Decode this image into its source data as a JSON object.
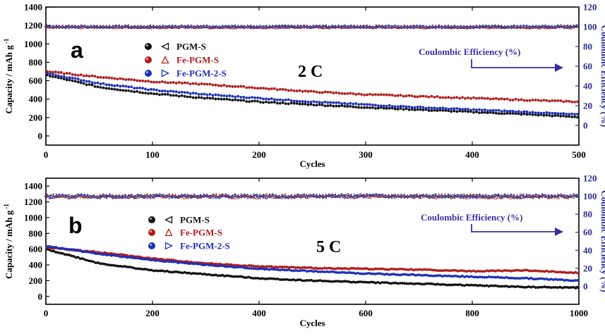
{
  "chart_data": [
    {
      "type": "scatter",
      "panel_label": "a",
      "rate_label": "2 C",
      "xlabel": "Cycles",
      "ylabel": "Capacity / mAh g",
      "ylabel_sup": "-1",
      "y2label": "Coulombic Efficiency (%)",
      "ce_annotation": "Coulombic Efficiency (%)",
      "xlim": [
        0,
        500
      ],
      "ylim": [
        -100,
        1400
      ],
      "y2lim": [
        -20,
        120
      ],
      "xticks": [
        "0",
        "100",
        "200",
        "300",
        "400",
        "500"
      ],
      "yticks": [
        "0",
        "200",
        "400",
        "600",
        "800",
        "1000",
        "1200",
        "1400"
      ],
      "y2ticks": [
        "0",
        "20",
        "40",
        "60",
        "80",
        "100",
        "120"
      ],
      "legend": [
        {
          "name": "PGM-S",
          "color": "#111111",
          "ce_marker": "left-triangle"
        },
        {
          "name": "Fe-PGM-S",
          "color": "#b01c1c",
          "ce_marker": "up-triangle"
        },
        {
          "name": "Fe-PGM-2-S",
          "color": "#1f2fb8",
          "ce_marker": "right-triangle"
        }
      ],
      "series": [
        {
          "name": "PGM-S",
          "color": "#111111",
          "x": [
            1,
            50,
            100,
            150,
            200,
            250,
            300,
            350,
            400,
            450,
            500
          ],
          "values": [
            660,
            530,
            460,
            410,
            370,
            340,
            310,
            285,
            260,
            235,
            205
          ]
        },
        {
          "name": "Fe-PGM-S",
          "color": "#b01c1c",
          "x": [
            1,
            50,
            100,
            150,
            200,
            250,
            300,
            350,
            400,
            450,
            500
          ],
          "values": [
            700,
            640,
            590,
            560,
            520,
            480,
            450,
            430,
            410,
            390,
            370
          ]
        },
        {
          "name": "Fe-PGM-2-S",
          "color": "#1f2fb8",
          "x": [
            1,
            50,
            100,
            150,
            200,
            250,
            300,
            350,
            400,
            450,
            500
          ],
          "values": [
            680,
            570,
            500,
            450,
            410,
            370,
            340,
            310,
            285,
            260,
            230
          ]
        }
      ],
      "coulombic_efficiency": {
        "x": [
          1,
          500
        ],
        "values": [
          100,
          100
        ]
      }
    },
    {
      "type": "scatter",
      "panel_label": "b",
      "rate_label": "5 C",
      "xlabel": "Cycles",
      "ylabel": "Capacity / mAh g",
      "ylabel_sup": "-1",
      "y2label": "Coulombic Efficiency (%)",
      "ce_annotation": "Coulombic Efficiency (%)",
      "xlim": [
        0,
        1000
      ],
      "ylim": [
        -100,
        1500
      ],
      "y2lim": [
        -20,
        120
      ],
      "xticks": [
        "0",
        "200",
        "400",
        "600",
        "800",
        "1000"
      ],
      "yticks": [
        "0",
        "200",
        "400",
        "600",
        "800",
        "1000",
        "1200",
        "1400"
      ],
      "y2ticks": [
        "0",
        "20",
        "40",
        "60",
        "80",
        "100",
        "120"
      ],
      "legend": [
        {
          "name": "PGM-S",
          "color": "#111111",
          "ce_marker": "left-triangle"
        },
        {
          "name": "Fe-PGM-S",
          "color": "#b01c1c",
          "ce_marker": "up-triangle"
        },
        {
          "name": "Fe-PGM-2-S",
          "color": "#1f2fb8",
          "ce_marker": "right-triangle"
        }
      ],
      "series": [
        {
          "name": "PGM-S",
          "color": "#111111",
          "x": [
            1,
            100,
            200,
            300,
            400,
            500,
            600,
            700,
            800,
            900,
            1000
          ],
          "values": [
            600,
            420,
            330,
            280,
            230,
            200,
            180,
            160,
            140,
            120,
            110
          ]
        },
        {
          "name": "Fe-PGM-S",
          "color": "#b01c1c",
          "x": [
            1,
            100,
            200,
            300,
            400,
            500,
            600,
            700,
            800,
            900,
            1000
          ],
          "values": [
            620,
            560,
            480,
            420,
            380,
            360,
            350,
            340,
            320,
            330,
            300
          ]
        },
        {
          "name": "Fe-PGM-2-S",
          "color": "#1f2fb8",
          "x": [
            1,
            100,
            200,
            300,
            400,
            500,
            600,
            700,
            800,
            900,
            1000
          ],
          "values": [
            640,
            540,
            460,
            400,
            350,
            320,
            290,
            270,
            250,
            230,
            200
          ]
        }
      ],
      "coulombic_efficiency": {
        "x": [
          1,
          1000
        ],
        "values": [
          100,
          100
        ]
      }
    }
  ]
}
